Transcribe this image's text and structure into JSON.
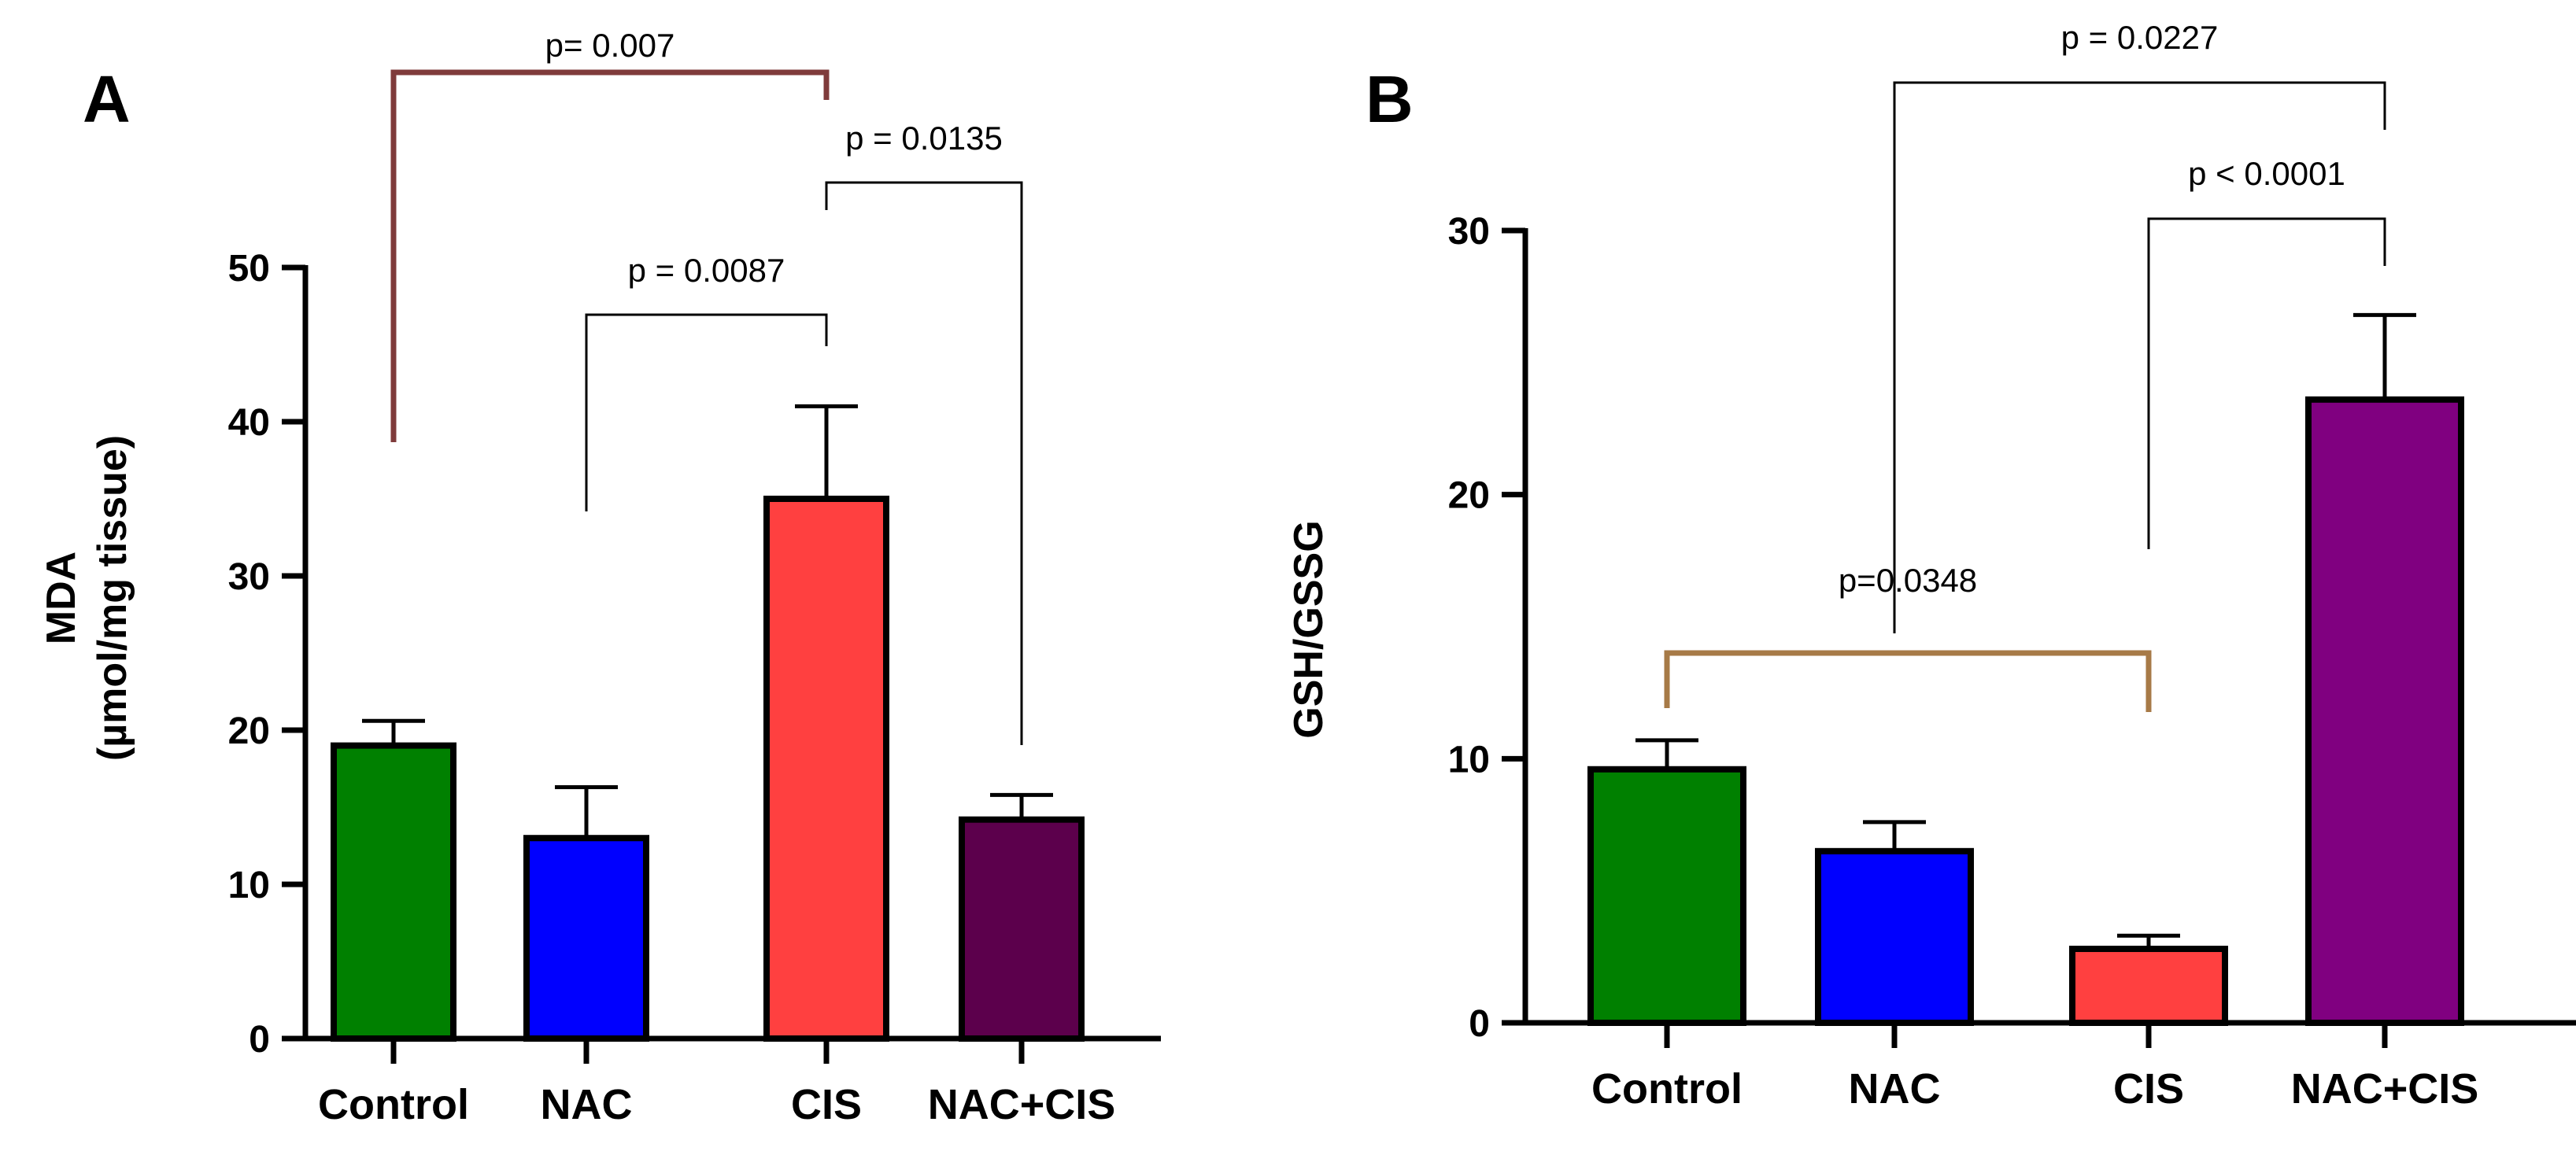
{
  "chart_data": [
    {
      "type": "bar",
      "panel_label": "A",
      "categories": [
        "Control",
        "NAC",
        "CIS",
        "NAC+CIS"
      ],
      "values": [
        19,
        13,
        35,
        14.2
      ],
      "errors": [
        1.6,
        3.3,
        6,
        1.6
      ],
      "colors": [
        "#008000",
        "#0000ff",
        "#ff4040",
        "#5c004c"
      ],
      "ylabel_lines": [
        "MDA",
        "(µmol/mg tissue)"
      ],
      "ylim": [
        0,
        50
      ],
      "yticks": [
        "0",
        "10",
        "20",
        "30",
        "40",
        "50"
      ],
      "ytick_values": [
        0,
        10,
        20,
        30,
        40,
        50
      ],
      "significance": [
        {
          "text": "p= 0.007",
          "from": 0,
          "to": 2,
          "color": "#7f3b3b"
        },
        {
          "text": "p = 0.0087",
          "from": 1,
          "to": 2,
          "color": "#000000"
        },
        {
          "text": "p = 0.0135",
          "from": 2,
          "to": 3,
          "color": "#000000"
        }
      ]
    },
    {
      "type": "bar",
      "panel_label": "B",
      "categories": [
        "Control",
        "NAC",
        "CIS",
        "NAC+CIS"
      ],
      "values": [
        9.6,
        6.5,
        2.8,
        23.6
      ],
      "errors": [
        1.1,
        1.1,
        0.5,
        3.2
      ],
      "colors": [
        "#008000",
        "#0000ff",
        "#ff4040",
        "#800080"
      ],
      "ylabel_lines": [
        "GSH/GSSG"
      ],
      "ylim": [
        0,
        30
      ],
      "yticks": [
        "0",
        "10",
        "20",
        "30"
      ],
      "ytick_values": [
        0,
        10,
        20,
        30
      ],
      "significance": [
        {
          "text": "p = 0.0227",
          "from": 1,
          "to": 3,
          "color": "#000000"
        },
        {
          "text": "p < 0.0001",
          "from": 2,
          "to": 3,
          "color": "#000000"
        },
        {
          "text": "p=0.0348",
          "from": 0,
          "to": 2,
          "color": "#a77a47"
        }
      ]
    }
  ]
}
